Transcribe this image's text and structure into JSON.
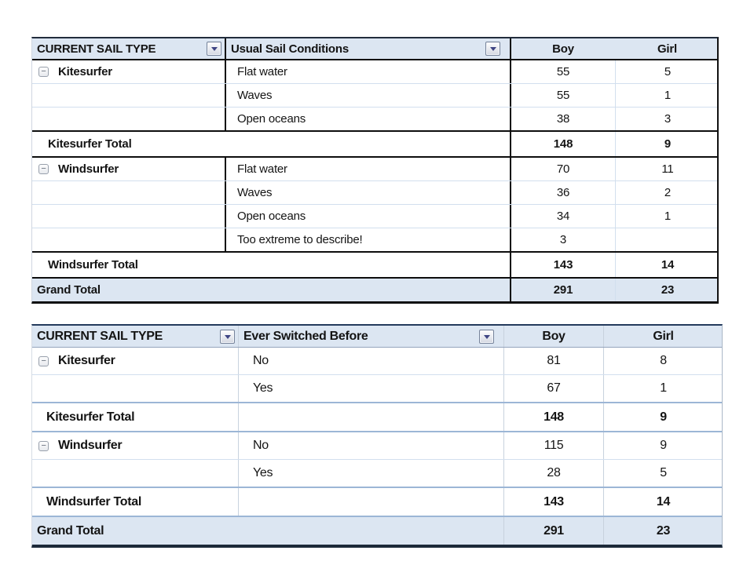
{
  "icons": {
    "collapse_glyph": "−",
    "filter_dropdown": "chevron-down-in-box",
    "collapse": "minus-in-box"
  },
  "colors": {
    "header_fill": "#dce6f2",
    "grand_total_fill": "#dce6f2",
    "table1_border": "#0d0d0d",
    "table2_accent_border": "#9cb6d6",
    "row_separator": "#d2dfee",
    "dropdown_arrow": "#3f4584"
  },
  "tables": [
    {
      "headers": {
        "col1": "CURRENT SAIL TYPE",
        "col2": "Usual Sail Conditions",
        "boy": "Boy",
        "girl": "Girl"
      },
      "groups": [
        {
          "name": "Kitesurfer",
          "rows": [
            {
              "label": "Flat water",
              "boy": "55",
              "girl": "5"
            },
            {
              "label": "Waves",
              "boy": "55",
              "girl": "1"
            },
            {
              "label": "Open oceans",
              "boy": "38",
              "girl": "3"
            }
          ],
          "total_label": "Kitesurfer Total",
          "total_boy": "148",
          "total_girl": "9"
        },
        {
          "name": "Windsurfer",
          "rows": [
            {
              "label": "Flat water",
              "boy": "70",
              "girl": "11"
            },
            {
              "label": "Waves",
              "boy": "36",
              "girl": "2"
            },
            {
              "label": "Open oceans",
              "boy": "34",
              "girl": "1"
            },
            {
              "label": "Too extreme to describe!",
              "boy": "3",
              "girl": ""
            }
          ],
          "total_label": "Windsurfer Total",
          "total_boy": "143",
          "total_girl": "14"
        }
      ],
      "grand": {
        "label": "Grand Total",
        "boy": "291",
        "girl": "23"
      }
    },
    {
      "headers": {
        "col1": "CURRENT SAIL TYPE",
        "col2": "Ever Switched Before",
        "boy": "Boy",
        "girl": "Girl"
      },
      "groups": [
        {
          "name": "Kitesurfer",
          "rows": [
            {
              "label": "No",
              "boy": "81",
              "girl": "8"
            },
            {
              "label": "Yes",
              "boy": "67",
              "girl": "1"
            }
          ],
          "total_label": "Kitesurfer Total",
          "total_boy": "148",
          "total_girl": "9"
        },
        {
          "name": "Windsurfer",
          "rows": [
            {
              "label": "No",
              "boy": "115",
              "girl": "9"
            },
            {
              "label": "Yes",
              "boy": "28",
              "girl": "5"
            }
          ],
          "total_label": "Windsurfer Total",
          "total_boy": "143",
          "total_girl": "14"
        }
      ],
      "grand": {
        "label": "Grand Total",
        "boy": "291",
        "girl": "23"
      }
    }
  ]
}
